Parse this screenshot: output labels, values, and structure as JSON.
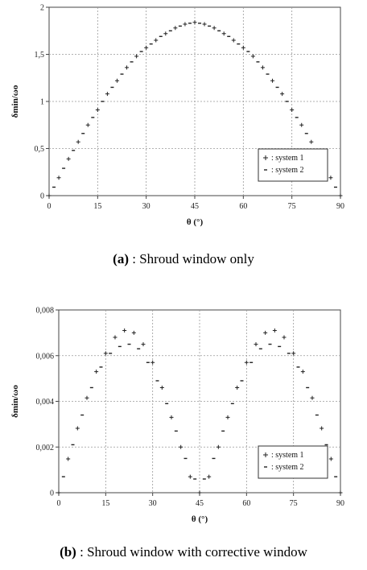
{
  "chart_data": [
    {
      "type": "scatter",
      "xlabel": "θ (°)",
      "ylabel": "δmin/ωo",
      "x_ticks": [
        "0",
        "15",
        "30",
        "45",
        "60",
        "75",
        "90"
      ],
      "y_ticks": [
        "0",
        "0,5",
        "1",
        "1,5",
        "2"
      ],
      "xlim": [
        0,
        90
      ],
      "ylim": [
        0,
        2
      ],
      "grid": true,
      "legend_position": "bottom-right",
      "series": [
        {
          "name": ": system 1",
          "marker": "+",
          "x": [
            0,
            3,
            6,
            9,
            12,
            15,
            18,
            21,
            24,
            27,
            30,
            33,
            36,
            39,
            42,
            45,
            48,
            51,
            54,
            57,
            60,
            63,
            66,
            69,
            72,
            75,
            78,
            81,
            84,
            87,
            90
          ],
          "y": [
            0,
            0.19,
            0.39,
            0.57,
            0.75,
            0.91,
            1.08,
            1.22,
            1.36,
            1.48,
            1.57,
            1.65,
            1.72,
            1.78,
            1.82,
            1.84,
            1.82,
            1.78,
            1.72,
            1.65,
            1.57,
            1.48,
            1.36,
            1.22,
            1.08,
            0.91,
            0.75,
            0.57,
            0.39,
            0.19,
            0
          ]
        },
        {
          "name": ": system 2",
          "marker": "-",
          "x": [
            1.5,
            4.5,
            7.5,
            10.5,
            13.5,
            16.5,
            19.5,
            22.5,
            25.5,
            28.5,
            31.5,
            34.5,
            37.5,
            40.5,
            43.5,
            46.5,
            49.5,
            52.5,
            55.5,
            58.5,
            61.5,
            64.5,
            67.5,
            70.5,
            73.5,
            76.5,
            79.5,
            82.5,
            85.5,
            88.5
          ],
          "y": [
            0.09,
            0.29,
            0.48,
            0.66,
            0.83,
            1.0,
            1.15,
            1.29,
            1.42,
            1.53,
            1.61,
            1.69,
            1.75,
            1.8,
            1.83,
            1.83,
            1.8,
            1.75,
            1.69,
            1.61,
            1.53,
            1.42,
            1.29,
            1.15,
            1.0,
            0.83,
            0.66,
            0.48,
            0.29,
            0.09
          ]
        }
      ],
      "caption_label": "(a)",
      "caption_text": " : Shroud window only"
    },
    {
      "type": "scatter",
      "xlabel": "θ (°)",
      "ylabel": "δmin/ωo",
      "x_ticks": [
        "0",
        "15",
        "30",
        "45",
        "60",
        "75",
        "90"
      ],
      "y_ticks": [
        "0",
        "0,002",
        "0,004",
        "0,006",
        "0,008"
      ],
      "xlim": [
        0,
        90
      ],
      "ylim": [
        0,
        0.008
      ],
      "grid": true,
      "legend_position": "bottom-right",
      "series": [
        {
          "name": ": system 1",
          "marker": "+",
          "x": [
            0,
            3,
            6,
            9,
            12,
            15,
            18,
            21,
            24,
            27,
            30,
            33,
            36,
            39,
            42,
            45,
            48,
            51,
            54,
            57,
            60,
            63,
            66,
            69,
            72,
            75,
            78,
            81,
            84,
            87,
            90
          ],
          "y": [
            0,
            0.00148,
            0.00282,
            0.00415,
            0.0053,
            0.0061,
            0.0068,
            0.0071,
            0.007,
            0.0065,
            0.0057,
            0.0046,
            0.0033,
            0.002,
            0.0007,
            0,
            0.0007,
            0.002,
            0.0033,
            0.0046,
            0.0057,
            0.0065,
            0.007,
            0.0071,
            0.0068,
            0.0061,
            0.0053,
            0.00415,
            0.00282,
            0.00148,
            0
          ]
        },
        {
          "name": ": system 2",
          "marker": "-",
          "x": [
            1.5,
            4.5,
            7.5,
            10.5,
            13.5,
            16.5,
            19.5,
            22.5,
            25.5,
            28.5,
            31.5,
            34.5,
            37.5,
            40.5,
            43.5,
            46.5,
            49.5,
            52.5,
            55.5,
            58.5,
            61.5,
            64.5,
            67.5,
            70.5,
            73.5,
            76.5,
            79.5,
            82.5,
            85.5,
            88.5
          ],
          "y": [
            0.0007,
            0.0021,
            0.0034,
            0.0046,
            0.0055,
            0.0061,
            0.0064,
            0.0065,
            0.0063,
            0.0057,
            0.0049,
            0.0039,
            0.0027,
            0.0015,
            0.0006,
            0.0006,
            0.0015,
            0.0027,
            0.0039,
            0.0049,
            0.0057,
            0.0063,
            0.0065,
            0.0064,
            0.0061,
            0.0055,
            0.0046,
            0.0034,
            0.0021,
            0.0007
          ]
        }
      ],
      "caption_label": "(b)",
      "caption_text": " : Shroud window with corrective window"
    }
  ]
}
